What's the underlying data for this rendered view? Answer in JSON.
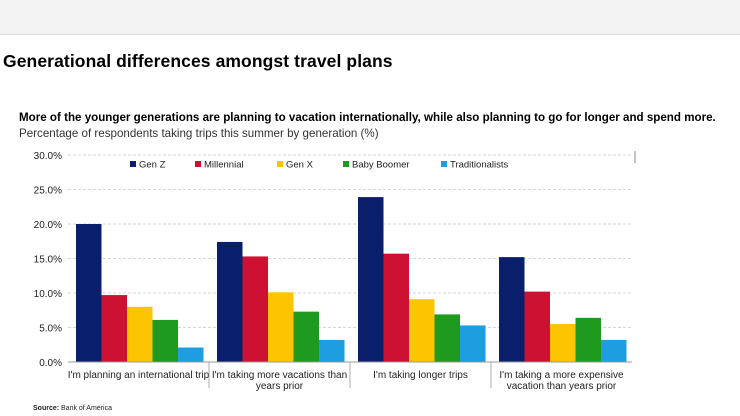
{
  "header": {
    "title": "Generational differences amongst travel plans"
  },
  "source": {
    "label": "Source:",
    "text": "Bank of America"
  },
  "chart_data": {
    "type": "bar",
    "title": "More of the younger generations are planning to vacation internationally, while also planning to go for longer and spend more.",
    "subtitle": "Percentage of respondents taking trips this summer by generation (%)",
    "xlabel": "",
    "ylabel": "",
    "ylim": [
      0,
      30
    ],
    "yticks": [
      "0.0%",
      "5.0%",
      "10.0%",
      "15.0%",
      "20.0%",
      "25.0%",
      "30.0%"
    ],
    "grid": true,
    "legend_position": "top",
    "categories": [
      [
        "I'm planning an international trip"
      ],
      [
        "I'm taking more vacations than",
        "years prior"
      ],
      [
        "I'm taking longer trips"
      ],
      [
        "I'm taking a more expensive",
        "vacation than years prior"
      ]
    ],
    "series": [
      {
        "name": "Gen Z",
        "color": "#0a1f6b",
        "values": [
          20.0,
          17.4,
          23.9,
          15.2
        ]
      },
      {
        "name": "Millennial",
        "color": "#cc1133",
        "values": [
          9.7,
          15.3,
          15.7,
          10.2
        ]
      },
      {
        "name": "Gen X",
        "color": "#fdc500",
        "values": [
          8.0,
          10.1,
          9.1,
          5.5
        ]
      },
      {
        "name": "Baby Boomer",
        "color": "#1e9a1e",
        "values": [
          6.1,
          7.3,
          6.9,
          6.4
        ]
      },
      {
        "name": "Traditionalists",
        "color": "#1e9de0",
        "values": [
          2.1,
          3.2,
          5.3,
          3.2
        ]
      }
    ]
  }
}
